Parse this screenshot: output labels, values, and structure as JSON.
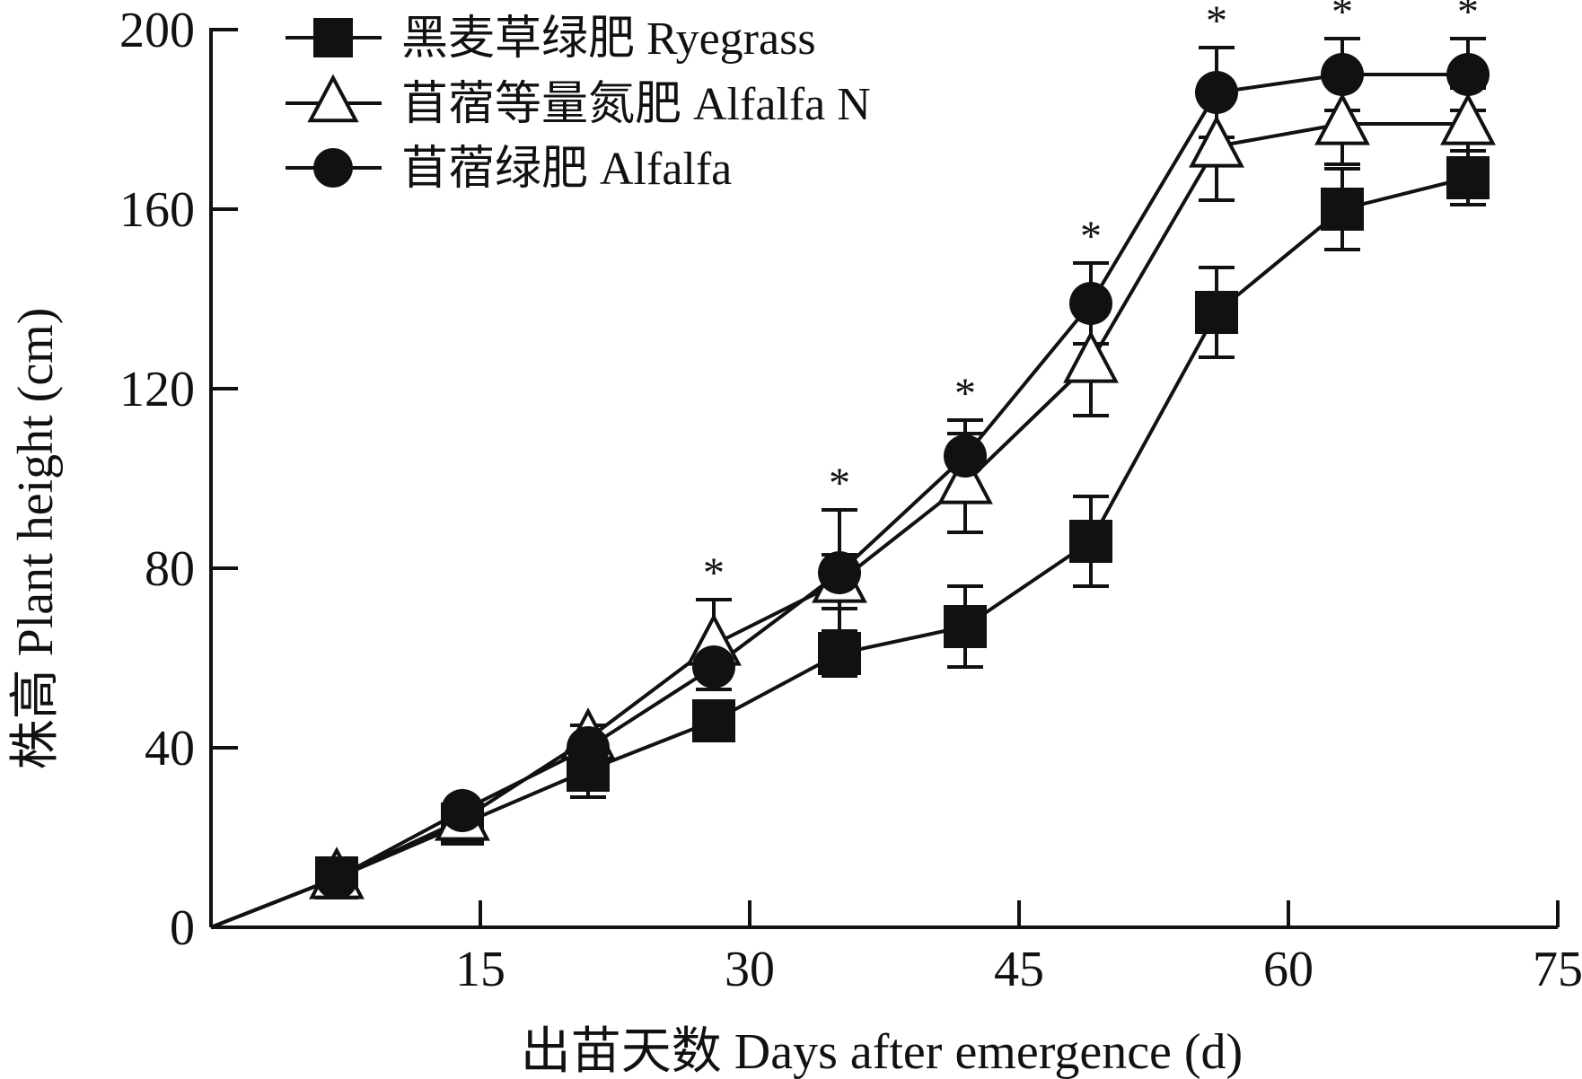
{
  "chart_data": {
    "type": "line",
    "title": "",
    "xlabel": "出苗天数 Days after emergence (d)",
    "ylabel": "株高 Plant height (cm)",
    "xlim": [
      0,
      75
    ],
    "ylim": [
      0,
      200
    ],
    "xticks": [
      15,
      30,
      45,
      60,
      75
    ],
    "yticks": [
      0,
      40,
      80,
      120,
      160,
      200
    ],
    "x": [
      7,
      14,
      21,
      28,
      35,
      42,
      49,
      56,
      63,
      70
    ],
    "series": [
      {
        "name": "黑麦草绿肥 Ryegrass",
        "marker": "filled-square",
        "values": [
          11,
          23,
          35,
          46,
          61,
          67,
          86,
          137,
          160,
          167
        ],
        "errors": [
          0,
          0,
          6,
          4,
          5,
          9,
          10,
          10,
          9,
          6
        ]
      },
      {
        "name": "苜蓿等量氮肥 Alfalfa N",
        "marker": "open-triangle",
        "values": [
          11,
          24,
          42,
          63,
          77,
          99,
          126,
          174,
          179,
          179
        ],
        "errors": [
          0,
          0,
          3,
          10,
          6,
          11,
          12,
          12,
          9,
          8
        ]
      },
      {
        "name": "苜蓿绿肥 Alfalfa",
        "marker": "filled-circle",
        "values": [
          11,
          26,
          40,
          58,
          79,
          105,
          139,
          186,
          190,
          190
        ],
        "errors": [
          0,
          0,
          0,
          0,
          14,
          8,
          9,
          10,
          8,
          8
        ]
      }
    ],
    "annotations": {
      "significance_x": [
        28,
        35,
        42,
        49,
        56,
        63,
        70
      ],
      "label": "*"
    },
    "legend": "top-left"
  }
}
